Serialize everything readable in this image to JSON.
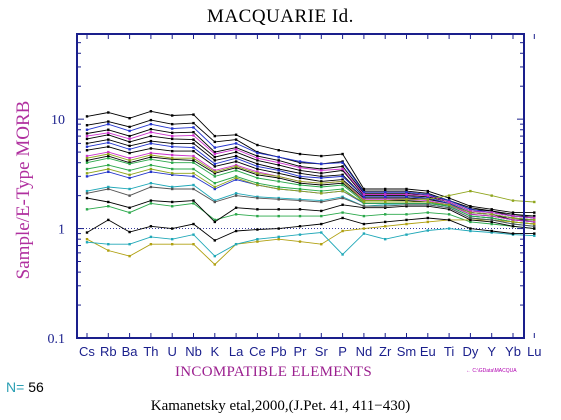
{
  "chart_data": {
    "type": "line",
    "title": "MACQUARIE Id.",
    "xlabel": "INCOMPATIBLE ELEMENTS",
    "ylabel": "Sample/E-Type MORB",
    "yscale": "log",
    "ylim": [
      0.1,
      60
    ],
    "yticks": [
      "0.1",
      "1",
      "10"
    ],
    "categories": [
      "Cs",
      "Rb",
      "Ba",
      "Th",
      "U",
      "Nb",
      "K",
      "La",
      "Ce",
      "Pb",
      "Pr",
      "Sr",
      "P",
      "Nd",
      "Zr",
      "Sm",
      "Eu",
      "Ti",
      "Dy",
      "Y",
      "Yb",
      "Lu"
    ],
    "reference_line": 1,
    "n_label": "N=",
    "n_value": "56",
    "legend_text": "← C:\\GData\\MACQUA",
    "source": "Kamanetsky etal,2000,(J.Pet. 41, 411−430)",
    "series": [
      {
        "color": "#000000",
        "values": [
          10.6,
          11.5,
          10.2,
          11.8,
          10.8,
          11.0,
          7.0,
          7.2,
          5.8,
          5.2,
          4.8,
          4.6,
          4.8,
          2.3,
          2.3,
          2.3,
          2.2,
          1.9,
          1.6,
          1.5,
          1.4,
          1.4
        ]
      },
      {
        "color": "#000000",
        "values": [
          8.8,
          9.5,
          8.5,
          9.8,
          9.0,
          9.2,
          6.2,
          6.5,
          5.0,
          4.5,
          4.0,
          3.9,
          4.1,
          2.2,
          2.2,
          2.2,
          2.1,
          1.8,
          1.55,
          1.45,
          1.35,
          1.3
        ]
      },
      {
        "color": "#000000",
        "values": [
          7.4,
          8.0,
          7.0,
          8.1,
          7.5,
          7.6,
          5.0,
          5.5,
          4.6,
          4.2,
          3.7,
          3.5,
          3.7,
          2.1,
          2.1,
          2.1,
          2.0,
          1.8,
          1.5,
          1.45,
          1.3,
          1.3
        ]
      },
      {
        "color": "#000000",
        "values": [
          6.6,
          7.2,
          6.2,
          7.0,
          6.6,
          6.5,
          4.5,
          5.0,
          4.2,
          3.8,
          3.4,
          3.2,
          3.4,
          2.0,
          2.0,
          2.0,
          1.95,
          1.75,
          1.45,
          1.4,
          1.3,
          1.25
        ]
      },
      {
        "color": "#000000",
        "values": [
          6.0,
          6.5,
          5.7,
          6.3,
          6.0,
          6.0,
          4.2,
          4.6,
          3.9,
          3.5,
          3.2,
          3.0,
          3.1,
          1.95,
          1.95,
          1.95,
          1.9,
          1.7,
          1.4,
          1.35,
          1.25,
          1.2
        ]
      },
      {
        "color": "#000000",
        "values": [
          5.2,
          5.6,
          4.9,
          5.4,
          5.1,
          5.1,
          3.7,
          4.1,
          3.5,
          3.2,
          2.9,
          2.7,
          2.8,
          1.9,
          1.9,
          1.9,
          1.85,
          1.7,
          1.4,
          1.35,
          1.2,
          1.2
        ]
      },
      {
        "color": "#000000",
        "values": [
          4.2,
          4.6,
          4.0,
          4.5,
          4.3,
          4.2,
          3.2,
          3.6,
          3.1,
          2.9,
          2.6,
          2.5,
          2.6,
          1.8,
          1.8,
          1.8,
          1.75,
          1.65,
          1.35,
          1.3,
          1.2,
          1.15
        ]
      },
      {
        "color": "#2233cc",
        "values": [
          8.0,
          9.0,
          7.8,
          9.0,
          8.2,
          8.4,
          5.5,
          6.0,
          4.9,
          4.5,
          4.1,
          3.9,
          4.0,
          2.15,
          2.15,
          2.15,
          2.05,
          1.8,
          1.5,
          1.4,
          1.3,
          1.25
        ]
      },
      {
        "color": "#2233cc",
        "values": [
          5.6,
          6.1,
          5.3,
          6.0,
          5.6,
          5.5,
          3.9,
          4.4,
          3.7,
          3.4,
          3.0,
          2.9,
          3.0,
          1.95,
          1.95,
          1.95,
          1.9,
          1.7,
          1.4,
          1.35,
          1.25,
          1.2
        ]
      },
      {
        "color": "#2233cc",
        "values": [
          3.0,
          3.3,
          2.9,
          3.3,
          3.1,
          3.0,
          2.3,
          2.8,
          2.5,
          2.3,
          2.2,
          2.1,
          2.2,
          1.7,
          1.7,
          1.7,
          1.7,
          1.6,
          1.3,
          1.25,
          1.15,
          1.1
        ]
      },
      {
        "color": "#cc33cc",
        "values": [
          7.0,
          7.5,
          6.6,
          7.6,
          7.0,
          7.1,
          4.8,
          5.3,
          4.4,
          4.0,
          3.6,
          3.4,
          3.5,
          2.05,
          2.05,
          2.05,
          2.0,
          1.75,
          1.45,
          1.4,
          1.3,
          1.25
        ]
      },
      {
        "color": "#cc33cc",
        "values": [
          4.6,
          5.0,
          4.4,
          4.9,
          4.7,
          4.6,
          3.4,
          3.8,
          3.3,
          3.0,
          2.7,
          2.6,
          2.7,
          1.85,
          1.85,
          1.85,
          1.8,
          1.65,
          1.35,
          1.3,
          1.2,
          1.15
        ]
      },
      {
        "color": "#2aa84a",
        "values": [
          4.0,
          4.4,
          3.9,
          4.3,
          4.0,
          4.0,
          3.0,
          3.4,
          2.9,
          2.7,
          2.5,
          2.4,
          2.5,
          1.75,
          1.75,
          1.75,
          1.75,
          1.6,
          1.3,
          1.25,
          1.15,
          1.1
        ]
      },
      {
        "color": "#2aa84a",
        "values": [
          3.5,
          3.8,
          3.4,
          3.8,
          3.5,
          3.5,
          2.6,
          3.0,
          2.6,
          2.4,
          2.3,
          2.2,
          2.3,
          1.7,
          1.7,
          1.7,
          1.7,
          1.6,
          1.3,
          1.25,
          1.15,
          1.1
        ]
      },
      {
        "color": "#2aa84a",
        "values": [
          1.5,
          1.6,
          1.4,
          1.7,
          1.6,
          1.7,
          1.2,
          1.35,
          1.3,
          1.3,
          1.3,
          1.3,
          1.4,
          1.3,
          1.35,
          1.35,
          1.4,
          1.35,
          1.15,
          1.1,
          1.05,
          1.0
        ]
      },
      {
        "color": "#8fa51c",
        "values": [
          4.4,
          4.8,
          4.2,
          4.7,
          4.4,
          4.4,
          3.3,
          3.7,
          3.2,
          3.0,
          2.7,
          2.6,
          2.7,
          1.8,
          1.8,
          1.85,
          1.85,
          2.0,
          2.2,
          2.0,
          1.8,
          1.75
        ]
      },
      {
        "color": "#8fa51c",
        "values": [
          3.2,
          3.5,
          3.1,
          3.5,
          3.2,
          3.2,
          2.4,
          2.9,
          2.5,
          2.3,
          2.2,
          2.1,
          2.2,
          1.75,
          1.75,
          1.75,
          1.75,
          1.65,
          1.4,
          1.35,
          1.25,
          1.2
        ]
      },
      {
        "color": "#b0a010",
        "values": [
          0.8,
          0.63,
          0.56,
          0.72,
          0.72,
          0.72,
          0.47,
          0.72,
          0.76,
          0.8,
          0.76,
          0.72,
          0.95,
          1.0,
          1.05,
          1.1,
          1.15,
          1.2,
          1.2,
          1.2,
          1.15,
          1.1
        ]
      },
      {
        "color": "#20a8b8",
        "values": [
          2.2,
          2.4,
          2.3,
          2.6,
          2.4,
          2.5,
          1.8,
          2.1,
          1.95,
          1.9,
          1.85,
          1.8,
          1.95,
          1.6,
          1.65,
          1.65,
          1.65,
          1.55,
          1.25,
          1.2,
          1.1,
          1.05
        ]
      },
      {
        "color": "#20a8b8",
        "values": [
          0.75,
          0.72,
          0.72,
          0.84,
          0.8,
          0.88,
          0.56,
          0.72,
          0.8,
          0.84,
          0.88,
          0.92,
          0.58,
          0.9,
          0.8,
          0.88,
          0.96,
          1.0,
          0.95,
          0.92,
          0.88,
          0.86
        ]
      },
      {
        "color": "#000000",
        "values": [
          1.9,
          1.75,
          1.55,
          1.8,
          1.75,
          1.8,
          1.15,
          1.55,
          1.5,
          1.5,
          1.5,
          1.45,
          1.65,
          1.55,
          1.55,
          1.6,
          1.6,
          1.5,
          1.2,
          1.15,
          1.05,
          1.0
        ]
      },
      {
        "color": "#000000",
        "values": [
          0.92,
          1.2,
          0.93,
          1.05,
          1.0,
          1.1,
          0.78,
          0.95,
          0.98,
          1.0,
          1.05,
          1.1,
          1.25,
          1.1,
          1.15,
          1.2,
          1.25,
          1.2,
          1.0,
          0.95,
          0.9,
          0.9
        ]
      },
      {
        "color": "#555555",
        "values": [
          2.1,
          2.3,
          2.0,
          2.4,
          2.3,
          2.3,
          1.75,
          2.0,
          1.9,
          1.85,
          1.8,
          1.75,
          1.9,
          1.6,
          1.6,
          1.65,
          1.65,
          1.55,
          1.25,
          1.2,
          1.1,
          1.05
        ]
      }
    ]
  }
}
